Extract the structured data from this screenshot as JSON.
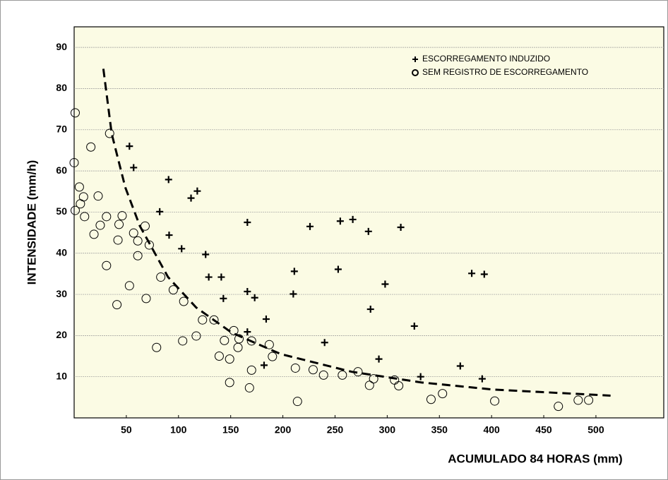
{
  "chart_data": {
    "type": "scatter",
    "xlabel": "ACUMULADO 84 HORAS (mm)",
    "ylabel": "INTENSIDADE  (mm/h)",
    "xlim": [
      0,
      565
    ],
    "ylim": [
      0,
      95
    ],
    "xticks": [
      50,
      100,
      150,
      200,
      250,
      300,
      350,
      400,
      450,
      500
    ],
    "yticks": [
      10,
      20,
      30,
      40,
      50,
      60,
      70,
      80,
      90
    ],
    "grid": true,
    "legend": "upper right",
    "background": "#fbfbe4",
    "series": [
      {
        "name": "ESCORREGAMENTO INDUZIDO",
        "marker": "+",
        "color": "#000000",
        "x": [
          53,
          57,
          90.5,
          118,
          112,
          82,
          91,
          103,
          126,
          129,
          141,
          143,
          166,
          166,
          166,
          173,
          184,
          182,
          211,
          210,
          226,
          240,
          255,
          267,
          253,
          282,
          284,
          298,
          313,
          292,
          326,
          332,
          370,
          381,
          393,
          391
        ],
        "values": [
          66,
          60.8,
          57.9,
          55.1,
          53.4,
          50.1,
          44.4,
          41.1,
          39.7,
          34.2,
          34.2,
          29,
          47.5,
          30.7,
          20.9,
          29.2,
          24,
          12.8,
          35.6,
          30.1,
          46.5,
          18.3,
          47.8,
          48.2,
          36.1,
          45.3,
          26.4,
          32.5,
          46.3,
          14.3,
          22.3,
          10,
          12.6,
          35.1,
          34.9,
          9.5
        ]
      },
      {
        "name": "SEM REGISTRO DE ESCORREGAMENTO",
        "marker": "o",
        "color": "#000000",
        "x": [
          1,
          0,
          1,
          5,
          6,
          9,
          10,
          16,
          19,
          23,
          25,
          31,
          34,
          31,
          41,
          42,
          43,
          46,
          53,
          57,
          61,
          61,
          68,
          69,
          72,
          79,
          83,
          95,
          104,
          105,
          117,
          123,
          134,
          139,
          144,
          149,
          149,
          153,
          158,
          157,
          168,
          170,
          170,
          187,
          190,
          212,
          214,
          229,
          239,
          257,
          272,
          283,
          287,
          307,
          311,
          342,
          353,
          403,
          464,
          483,
          493
        ],
        "values": [
          74.1,
          62,
          50.4,
          56.1,
          52,
          53.7,
          48.9,
          65.8,
          44.6,
          53.9,
          46.8,
          48.9,
          69.1,
          37,
          27.5,
          43.2,
          47,
          49.1,
          32.1,
          44.9,
          43,
          39.4,
          46.6,
          29,
          42,
          17.1,
          34.2,
          31.1,
          18.7,
          28.3,
          19.9,
          23.8,
          23.8,
          15,
          18.8,
          14.3,
          8.6,
          21.2,
          19.2,
          17.1,
          7.3,
          18.7,
          11.6,
          17.8,
          14.9,
          12.1,
          4,
          11.7,
          10.4,
          10.4,
          11.2,
          7.9,
          9.5,
          9.2,
          7.8,
          4.5,
          5.9,
          4.1,
          2.8,
          4.3,
          4.3
        ]
      }
    ],
    "curve": {
      "color": "#000000",
      "x": [
        28,
        36,
        49,
        63,
        90,
        117,
        151,
        198,
        266,
        333,
        401,
        514
      ],
      "values": [
        84.8,
        69,
        56,
        46.6,
        34.2,
        26.8,
        20.7,
        15.5,
        11.2,
        8.6,
        6.9,
        5.4
      ]
    }
  }
}
